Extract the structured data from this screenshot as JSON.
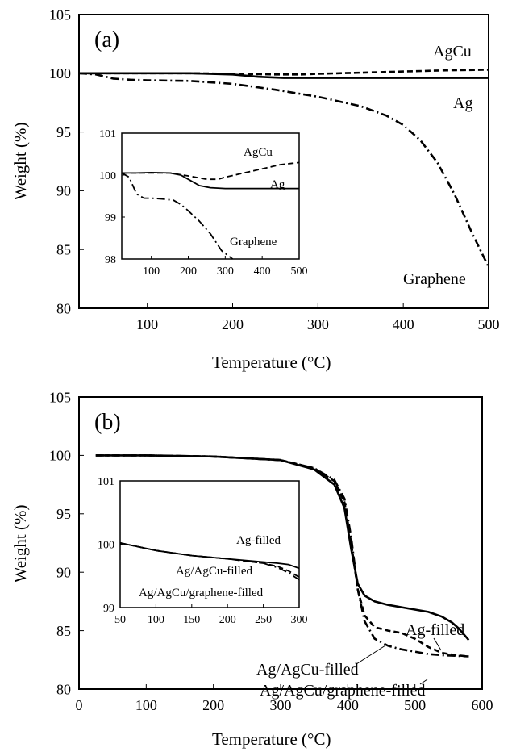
{
  "chart_data": [
    {
      "type": "line",
      "panel_label": "(a)",
      "xlabel": "Temperature (°C)",
      "ylabel": "Weight (%)",
      "xlim": [
        20,
        500
      ],
      "ylim": [
        80,
        105
      ],
      "xticks": [
        100,
        200,
        300,
        400,
        500
      ],
      "yticks": [
        80,
        85,
        90,
        95,
        100,
        105
      ],
      "series": [
        {
          "name": "AgCu",
          "style": "dashed",
          "x": [
            20,
            50,
            100,
            150,
            200,
            250,
            280,
            300,
            350,
            400,
            450,
            500
          ],
          "y": [
            100,
            100,
            100,
            100,
            99.95,
            99.9,
            99.9,
            99.95,
            100.05,
            100.15,
            100.25,
            100.3
          ]
        },
        {
          "name": "Ag",
          "style": "solid",
          "x": [
            20,
            50,
            100,
            150,
            200,
            230,
            260,
            300,
            350,
            400,
            450,
            500
          ],
          "y": [
            100,
            100,
            100,
            100,
            99.9,
            99.7,
            99.6,
            99.6,
            99.6,
            99.6,
            99.6,
            99.6
          ]
        },
        {
          "name": "Graphene",
          "style": "dashdot",
          "x": [
            20,
            40,
            60,
            80,
            100,
            150,
            200,
            250,
            300,
            350,
            380,
            400,
            420,
            440,
            460,
            480,
            500
          ],
          "y": [
            100,
            99.9,
            99.55,
            99.45,
            99.4,
            99.35,
            99.1,
            98.6,
            98,
            97.2,
            96.4,
            95.6,
            94.3,
            92.4,
            89.7,
            86.5,
            83.5
          ]
        }
      ],
      "inset": {
        "xlim": [
          20,
          500
        ],
        "ylim": [
          98,
          101
        ],
        "xticks": [
          100,
          200,
          300,
          400,
          500
        ],
        "yticks": [
          98,
          99,
          100,
          101
        ],
        "series": [
          {
            "name": "AgCu",
            "style": "dashed",
            "x": [
              20,
              60,
              100,
              150,
              200,
              250,
              280,
              300,
              350,
              400,
              450,
              500
            ],
            "y": [
              100.05,
              100.05,
              100.05,
              100.05,
              99.98,
              99.9,
              99.9,
              99.95,
              100.05,
              100.15,
              100.25,
              100.3
            ]
          },
          {
            "name": "Ag",
            "style": "solid",
            "x": [
              20,
              60,
              100,
              150,
              180,
              200,
              230,
              260,
              300,
              350,
              400,
              450,
              500
            ],
            "y": [
              100.05,
              100.05,
              100.06,
              100.05,
              100.0,
              99.9,
              99.75,
              99.7,
              99.68,
              99.68,
              99.68,
              99.68,
              99.68
            ]
          },
          {
            "name": "Graphene",
            "style": "dashdot",
            "x": [
              20,
              40,
              50,
              60,
              80,
              100,
              130,
              160,
              180,
              200,
              230,
              260,
              290,
              320
            ],
            "y": [
              100.05,
              99.95,
              99.75,
              99.55,
              99.45,
              99.45,
              99.43,
              99.4,
              99.3,
              99.15,
              98.9,
              98.6,
              98.2,
              97.9
            ]
          }
        ]
      }
    },
    {
      "type": "line",
      "panel_label": "(b)",
      "xlabel": "Temperature (°C)",
      "ylabel": "Weight (%)",
      "xlim": [
        0,
        600
      ],
      "ylim": [
        80,
        105
      ],
      "xticks": [
        0,
        100,
        200,
        300,
        400,
        500,
        600
      ],
      "yticks": [
        80,
        85,
        90,
        95,
        100,
        105
      ],
      "series": [
        {
          "name": "Ag-filled",
          "style": "solid",
          "x": [
            25,
            100,
            200,
            300,
            350,
            380,
            395,
            405,
            415,
            425,
            440,
            460,
            480,
            500,
            520,
            540,
            555,
            565,
            580
          ],
          "y": [
            100,
            100,
            99.9,
            99.6,
            98.8,
            97.5,
            95.5,
            92,
            89,
            88,
            87.5,
            87.2,
            87,
            86.8,
            86.6,
            86.2,
            85.7,
            85.2,
            84.2
          ]
        },
        {
          "name": "Ag/AgCu-filled",
          "style": "dashed",
          "x": [
            25,
            100,
            200,
            300,
            350,
            380,
            395,
            405,
            415,
            425,
            440,
            460,
            480,
            500,
            520,
            540,
            560,
            580
          ],
          "y": [
            100,
            100,
            99.9,
            99.6,
            98.9,
            97.8,
            96,
            92.5,
            88.5,
            86.3,
            85.3,
            85,
            84.8,
            84.3,
            83.6,
            83.1,
            82.9,
            82.8
          ]
        },
        {
          "name": "Ag/AgCu/graphene-filled",
          "style": "dashdot",
          "x": [
            25,
            100,
            200,
            300,
            350,
            380,
            395,
            405,
            415,
            425,
            440,
            460,
            480,
            500,
            520,
            540,
            560,
            580
          ],
          "y": [
            100,
            100,
            99.9,
            99.6,
            98.9,
            97.9,
            96.3,
            93,
            88.5,
            85.8,
            84.3,
            83.7,
            83.4,
            83.2,
            83.0,
            82.9,
            82.85,
            82.8
          ]
        }
      ],
      "inset": {
        "xlim": [
          50,
          300
        ],
        "ylim": [
          99,
          101
        ],
        "xticks": [
          50,
          100,
          150,
          200,
          250,
          300
        ],
        "yticks": [
          99,
          100,
          101
        ],
        "series": [
          {
            "name": "Ag-filled",
            "style": "solid",
            "x": [
              50,
              100,
              150,
              200,
              250,
              270,
              285,
              300
            ],
            "y": [
              100.02,
              99.9,
              99.82,
              99.77,
              99.72,
              99.7,
              99.68,
              99.62
            ]
          },
          {
            "name": "Ag/AgCu-filled",
            "style": "dashed",
            "x": [
              50,
              100,
              150,
              200,
              250,
              270,
              285,
              300
            ],
            "y": [
              100.02,
              99.9,
              99.82,
              99.77,
              99.7,
              99.65,
              99.58,
              99.48
            ]
          },
          {
            "name": "Ag/AgCu/graphene-filled",
            "style": "dashdot",
            "x": [
              50,
              100,
              150,
              200,
              250,
              270,
              285,
              300
            ],
            "y": [
              100.02,
              99.9,
              99.82,
              99.77,
              99.7,
              99.63,
              99.55,
              99.44
            ]
          }
        ]
      }
    }
  ]
}
